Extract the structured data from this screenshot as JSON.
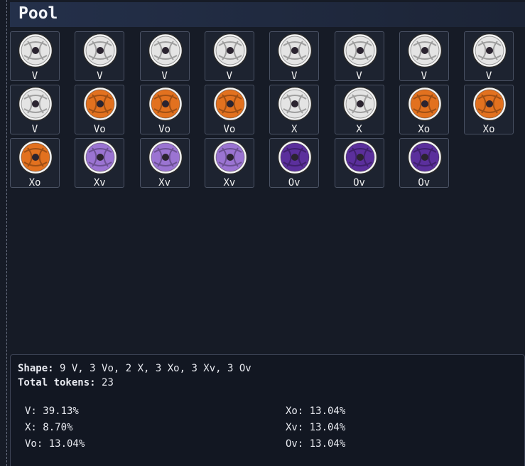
{
  "header": {
    "title": "Pool"
  },
  "tokens": [
    {
      "label": "V",
      "color": "#e4e4e4"
    },
    {
      "label": "V",
      "color": "#e4e4e4"
    },
    {
      "label": "V",
      "color": "#e4e4e4"
    },
    {
      "label": "V",
      "color": "#e4e4e4"
    },
    {
      "label": "V",
      "color": "#e4e4e4"
    },
    {
      "label": "V",
      "color": "#e4e4e4"
    },
    {
      "label": "V",
      "color": "#e4e4e4"
    },
    {
      "label": "V",
      "color": "#e4e4e4"
    },
    {
      "label": "V",
      "color": "#e4e4e4"
    },
    {
      "label": "Vo",
      "color": "#e2711f"
    },
    {
      "label": "Vo",
      "color": "#e2711f"
    },
    {
      "label": "Vo",
      "color": "#e2711f"
    },
    {
      "label": "X",
      "color": "#e4e4e4"
    },
    {
      "label": "X",
      "color": "#e4e4e4"
    },
    {
      "label": "Xo",
      "color": "#e2711f"
    },
    {
      "label": "Xo",
      "color": "#e2711f"
    },
    {
      "label": "Xo",
      "color": "#e2711f"
    },
    {
      "label": "Xv",
      "color": "#9b74d2"
    },
    {
      "label": "Xv",
      "color": "#9b74d2"
    },
    {
      "label": "Xv",
      "color": "#9b74d2"
    },
    {
      "label": "Ov",
      "color": "#5b2f9c"
    },
    {
      "label": "Ov",
      "color": "#5b2f9c"
    },
    {
      "label": "Ov",
      "color": "#5b2f9c"
    }
  ],
  "summary": {
    "shape_label": "Shape:",
    "shape": "9 V, 3 Vo, 2 X, 3 Xo, 3 Xv, 3 Ov",
    "total_label": "Total tokens:",
    "total": "23",
    "left": [
      "V: 39.13%",
      "X: 8.70%",
      "Vo: 13.04%"
    ],
    "right": [
      "Xo: 13.04%",
      "Xv: 13.04%",
      "Ov: 13.04%"
    ]
  }
}
